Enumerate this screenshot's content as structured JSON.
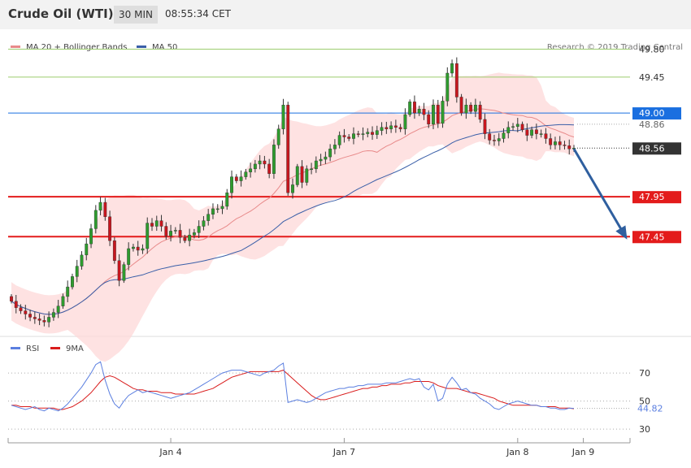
{
  "header": {
    "instrument": "Crude Oil (WTI)",
    "timeframe": "30 MIN",
    "time": "08:55:34 CET"
  },
  "main_legend": {
    "ma20_label": "MA 20 + Bollinger Bands",
    "ma50_label": "MA 50",
    "credit": "Research © 2019 Trading Central"
  },
  "rsi_legend": {
    "rsi_label": "RSI",
    "ma_label": "9MA"
  },
  "colors": {
    "up_candle": "#2e9c2e",
    "down_candle": "#c8161e",
    "ma20": "#e88a8a",
    "ma50": "#3a5fa8",
    "bands_fill": "#fdd8d8",
    "resistance": "#9ccc6e",
    "pivot": "#1a6fe0",
    "support": "#e31b1b",
    "rsi_line": "#5b7fe0",
    "rsi_ma": "#d91c1c",
    "arrow": "#2f5f9f"
  },
  "chart_data": [
    {
      "type": "candlestick",
      "title": "Crude Oil (WTI)",
      "timeframe": "30 MIN",
      "ylim": [
        46.2,
        50.05
      ],
      "x_ticks": [
        {
          "label": "Jan 4",
          "index": 34
        },
        {
          "label": "Jan 7",
          "index": 71
        },
        {
          "label": "Jan 8",
          "index": 108
        },
        {
          "label": "Jan 9",
          "index": 122
        }
      ],
      "levels": [
        {
          "label": "49.80",
          "value": 49.8,
          "role": "resistance"
        },
        {
          "label": "49.45",
          "value": 49.45,
          "role": "resistance"
        },
        {
          "label": "49.00",
          "value": 49.0,
          "role": "pivot"
        },
        {
          "label": "47.95",
          "value": 47.95,
          "role": "support"
        },
        {
          "label": "47.45",
          "value": 47.45,
          "role": "support"
        }
      ],
      "extra_price_labels": [
        {
          "label": "48.86",
          "value": 48.86
        },
        {
          "label": "48.56",
          "value": 48.56,
          "role": "last"
        }
      ],
      "last_price": 48.56,
      "projection": {
        "from_index": 120,
        "from": 48.55,
        "to_index": 131,
        "to": 47.45
      },
      "series_close": [
        46.64,
        46.56,
        46.52,
        46.48,
        46.44,
        46.42,
        46.4,
        46.38,
        46.44,
        46.5,
        46.58,
        46.7,
        46.82,
        46.95,
        47.08,
        47.22,
        47.36,
        47.55,
        47.78,
        47.88,
        47.7,
        47.4,
        47.15,
        46.9,
        47.1,
        47.3,
        47.32,
        47.28,
        47.3,
        47.62,
        47.58,
        47.65,
        47.58,
        47.46,
        47.52,
        47.53,
        47.44,
        47.4,
        47.47,
        47.5,
        47.58,
        47.65,
        47.73,
        47.8,
        47.8,
        47.83,
        48.0,
        48.2,
        48.15,
        48.2,
        48.26,
        48.3,
        48.36,
        48.4,
        48.36,
        48.24,
        48.6,
        48.8,
        49.1,
        48.0,
        48.1,
        48.33,
        48.13,
        48.3,
        48.3,
        48.4,
        48.42,
        48.45,
        48.55,
        48.6,
        48.72,
        48.7,
        48.68,
        48.74,
        48.73,
        48.74,
        48.76,
        48.73,
        48.78,
        48.82,
        48.8,
        48.84,
        48.82,
        48.8,
        48.98,
        49.14,
        49.0,
        49.05,
        48.98,
        48.86,
        49.1,
        48.87,
        49.15,
        49.5,
        49.62,
        49.2,
        49.0,
        49.1,
        49.02,
        49.1,
        48.92,
        48.74,
        48.66,
        48.65,
        48.68,
        48.75,
        48.82,
        48.83,
        48.86,
        48.79,
        48.72,
        48.79,
        48.74,
        48.74,
        48.68,
        48.6,
        48.64,
        48.6,
        48.59,
        48.55,
        48.56
      ],
      "rsi": {
        "levels": [
          70,
          50,
          30
        ],
        "last_label": "44.82",
        "ylim": [
          22,
          88
        ],
        "rsi_values": [
          47,
          46,
          45,
          44,
          45,
          46,
          44,
          43,
          45,
          44,
          43,
          45,
          48,
          52,
          56,
          60,
          65,
          70,
          76,
          78,
          65,
          55,
          48,
          45,
          50,
          54,
          56,
          58,
          56,
          57,
          56,
          55,
          54,
          53,
          52,
          53,
          54,
          55,
          56,
          58,
          60,
          62,
          64,
          66,
          68,
          70,
          71,
          72,
          72,
          72,
          71,
          70,
          69,
          68,
          70,
          71,
          72,
          75,
          77,
          49,
          50,
          51,
          50,
          49,
          50,
          52,
          54,
          56,
          57,
          58,
          59,
          59,
          60,
          60,
          61,
          61,
          62,
          62,
          62,
          62,
          63,
          63,
          63,
          64,
          65,
          66,
          65,
          66,
          60,
          58,
          62,
          50,
          52,
          62,
          67,
          63,
          58,
          59,
          56,
          55,
          52,
          50,
          48,
          45,
          44,
          46,
          48,
          49,
          50,
          49,
          48,
          47,
          47,
          46,
          46,
          45,
          45,
          44,
          44,
          45,
          44.82
        ],
        "ma_values": [
          47,
          47,
          46,
          46,
          46,
          45,
          45,
          45,
          45,
          45,
          44,
          44,
          45,
          46,
          48,
          50,
          53,
          56,
          60,
          64,
          67,
          68,
          67,
          65,
          63,
          61,
          59,
          58,
          58,
          57,
          57,
          57,
          56,
          56,
          56,
          55,
          55,
          55,
          55,
          55,
          56,
          57,
          58,
          59,
          61,
          63,
          65,
          67,
          68,
          69,
          70,
          71,
          71,
          71,
          71,
          71,
          71,
          71,
          72,
          69,
          66,
          63,
          60,
          57,
          54,
          52,
          51,
          51,
          52,
          53,
          54,
          55,
          56,
          57,
          58,
          59,
          59,
          60,
          60,
          61,
          61,
          62,
          62,
          62,
          63,
          63,
          64,
          64,
          64,
          64,
          63,
          61,
          60,
          59,
          59,
          59,
          58,
          57,
          56,
          56,
          55,
          54,
          53,
          52,
          50,
          49,
          48,
          47,
          47,
          47,
          47,
          47,
          47,
          46,
          46,
          46,
          46,
          45,
          45,
          45,
          44.5
        ]
      }
    }
  ]
}
